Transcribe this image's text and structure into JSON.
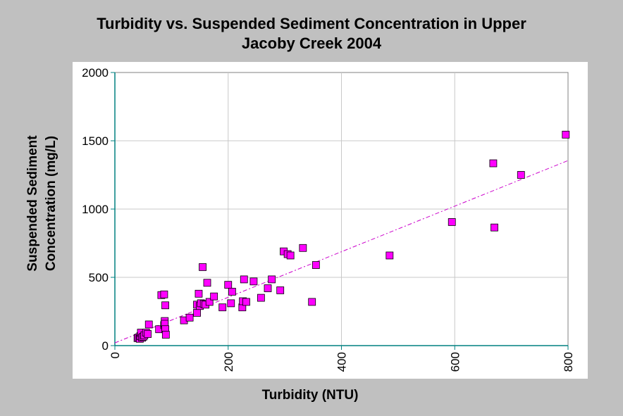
{
  "chart_data": {
    "type": "scatter",
    "title": "Turbidity vs. Suspended Sediment Concentration in Upper\nJacoby Creek 2004",
    "xlabel": "Turbidity (NTU)",
    "ylabel_lines": [
      "Suspended Sediment",
      "Concentration (mg/L)"
    ],
    "xlim": [
      0,
      800
    ],
    "ylim": [
      0,
      2000
    ],
    "xticks": [
      0,
      200,
      400,
      600,
      800
    ],
    "yticks": [
      0,
      500,
      1000,
      1500,
      2000
    ],
    "grid": true,
    "point_color": "#ff00ff",
    "trendline_color": "#cc00cc",
    "trendline": [
      [
        0,
        20
      ],
      [
        800,
        1355
      ]
    ],
    "points": [
      [
        40,
        55
      ],
      [
        42,
        60
      ],
      [
        44,
        50
      ],
      [
        45,
        70
      ],
      [
        46,
        95
      ],
      [
        48,
        58
      ],
      [
        50,
        65
      ],
      [
        52,
        75
      ],
      [
        55,
        95
      ],
      [
        58,
        85
      ],
      [
        60,
        155
      ],
      [
        78,
        120
      ],
      [
        82,
        370
      ],
      [
        87,
        375
      ],
      [
        87,
        150
      ],
      [
        88,
        180
      ],
      [
        88,
        160
      ],
      [
        89,
        120
      ],
      [
        89,
        295
      ],
      [
        90,
        80
      ],
      [
        122,
        185
      ],
      [
        132,
        205
      ],
      [
        145,
        240
      ],
      [
        145,
        300
      ],
      [
        148,
        380
      ],
      [
        150,
        290
      ],
      [
        152,
        310
      ],
      [
        155,
        575
      ],
      [
        157,
        305
      ],
      [
        160,
        300
      ],
      [
        163,
        460
      ],
      [
        167,
        320
      ],
      [
        175,
        360
      ],
      [
        190,
        280
      ],
      [
        200,
        445
      ],
      [
        205,
        310
      ],
      [
        207,
        395
      ],
      [
        225,
        280
      ],
      [
        226,
        325
      ],
      [
        228,
        485
      ],
      [
        232,
        320
      ],
      [
        245,
        470
      ],
      [
        258,
        350
      ],
      [
        270,
        420
      ],
      [
        277,
        485
      ],
      [
        292,
        405
      ],
      [
        298,
        690
      ],
      [
        305,
        670
      ],
      [
        310,
        660
      ],
      [
        332,
        715
      ],
      [
        348,
        320
      ],
      [
        355,
        590
      ],
      [
        485,
        660
      ],
      [
        595,
        905
      ],
      [
        668,
        1335
      ],
      [
        670,
        865
      ],
      [
        717,
        1250
      ],
      [
        796,
        1545
      ]
    ]
  }
}
